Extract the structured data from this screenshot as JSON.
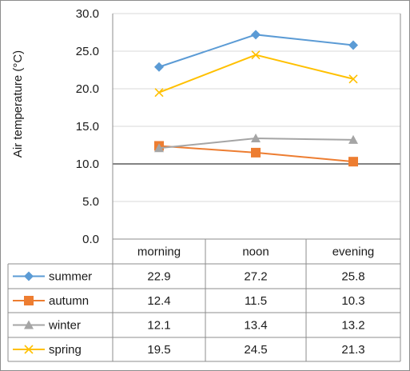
{
  "chart_data": {
    "type": "line",
    "ylabel": "Air temperature (°C)",
    "ylim": [
      0,
      30
    ],
    "yticks": [
      "0.0",
      "5.0",
      "10.0",
      "15.0",
      "20.0",
      "25.0",
      "30.0"
    ],
    "categories": [
      "morning",
      "noon",
      "evening"
    ],
    "grid": "horizontal",
    "legend": "data-table-left",
    "series": [
      {
        "name": "summer",
        "values": [
          22.9,
          27.2,
          25.8
        ],
        "labels": [
          "22.9",
          "27.2",
          "25.8"
        ],
        "color": "#5b9bd5",
        "marker": "diamond"
      },
      {
        "name": "autumn",
        "values": [
          12.4,
          11.5,
          10.3
        ],
        "labels": [
          "12.4",
          "11.5",
          "10.3"
        ],
        "color": "#ed7d31",
        "marker": "square"
      },
      {
        "name": "winter",
        "values": [
          12.1,
          13.4,
          13.2
        ],
        "labels": [
          "12.1",
          "13.4",
          "13.2"
        ],
        "color": "#a5a5a5",
        "marker": "triangle"
      },
      {
        "name": "spring",
        "values": [
          19.5,
          24.5,
          21.3
        ],
        "labels": [
          "19.5",
          "24.5",
          "21.3"
        ],
        "color": "#ffc000",
        "marker": "x"
      }
    ]
  }
}
